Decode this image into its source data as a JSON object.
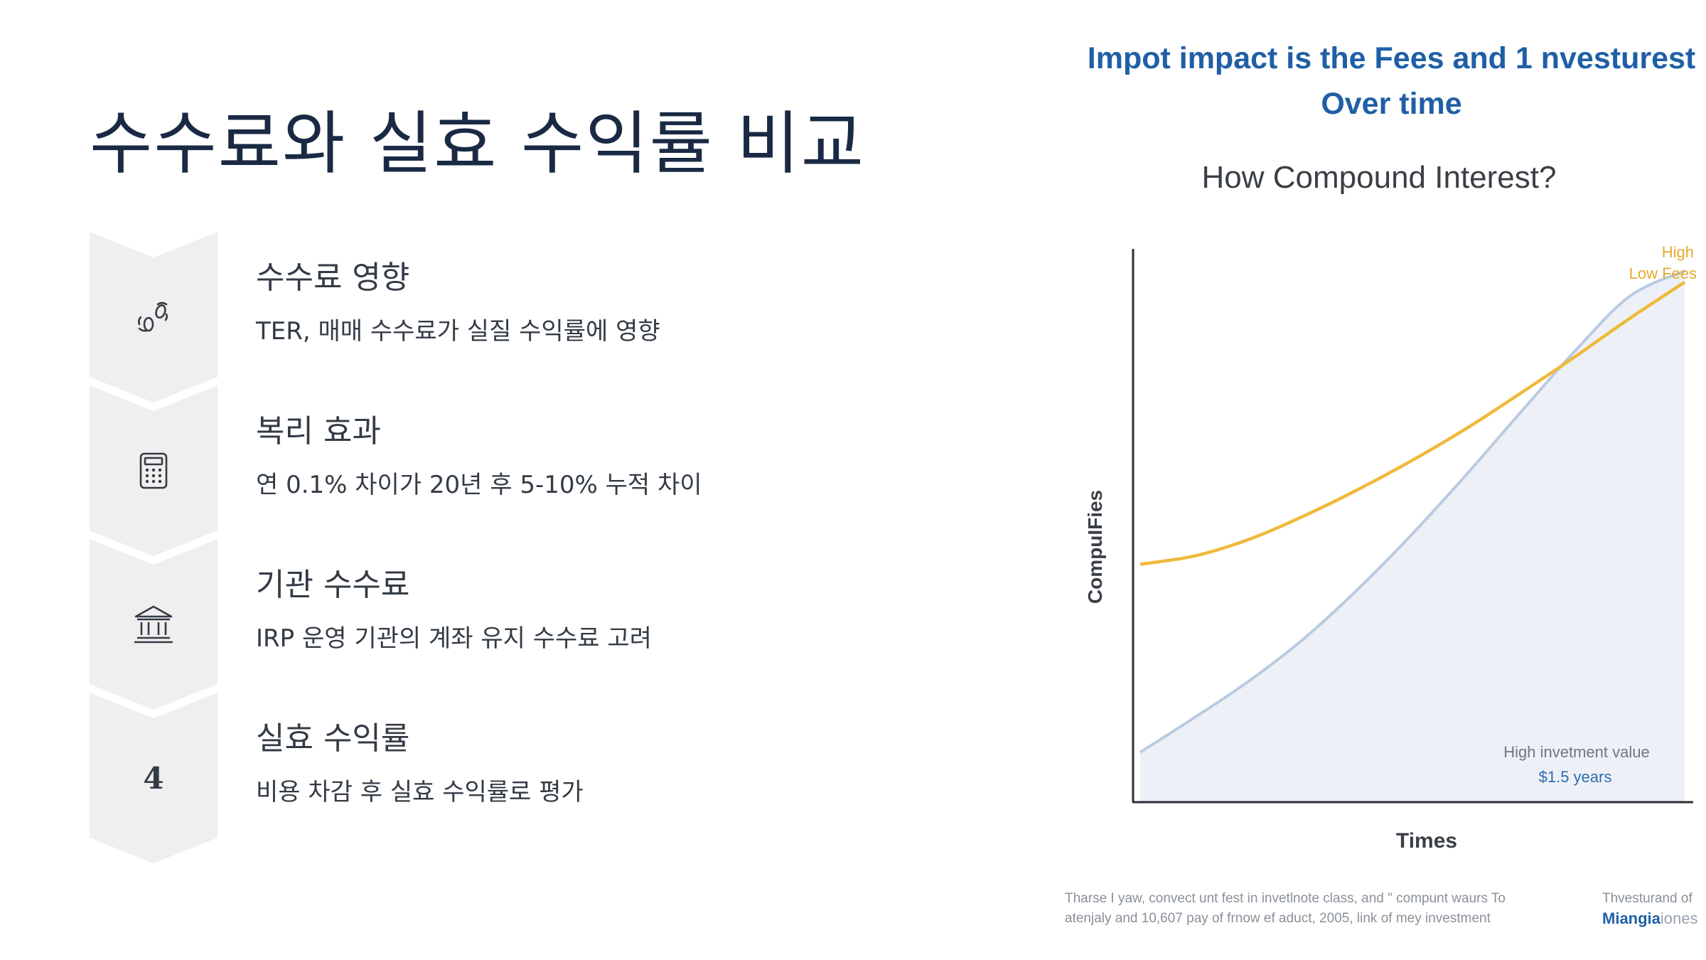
{
  "slide": {
    "title": "수수료와 실효 수익률 비교",
    "title_color": "#1a2a44",
    "text_color": "#333b45",
    "chevron_color": "#f0eeee"
  },
  "steps": [
    {
      "icon": "drops-icon",
      "heading": "수수료 영향",
      "desc": "TER, 매매 수수료가 실질 수익률에 영향"
    },
    {
      "icon": "calculator-icon",
      "heading": "복리 효과",
      "desc": "연 0.1% 차이가 20년 후 5-10% 누적 차이"
    },
    {
      "icon": "bank-icon",
      "heading": "기관 수수료",
      "desc": "IRP 운영 기관의 계좌 유지 수수료 고려"
    },
    {
      "icon": "number-icon",
      "number": "4",
      "heading": "실효 수익률",
      "desc": "비용 차감 후 실효 수익률로 평가"
    }
  ],
  "figure": {
    "banner_line1": "Impot impact is the Fees and 1 nvesturest",
    "banner_line2": "Over time",
    "banner_color": "#1f5fa6",
    "footer_line1": "Tharse I yaw, convect unt fest in invetlnote class, and \" compunt waurs To",
    "footer_line2": "atenjaly and 10,607 pay of frnow ef aduct, 2005, link of mey investment",
    "credit_line1": "Thvesturand of",
    "credit_brand": "Miangia",
    "credit_brand_light": "iones",
    "credit_color": "#1f5fa6"
  },
  "chart_data": {
    "type": "line",
    "title": "How Compound Interest?",
    "xlabel": "Times",
    "ylabel": "CompuIFies",
    "x": [
      0,
      1,
      2,
      3,
      4,
      5,
      6,
      7,
      8,
      9,
      10
    ],
    "xlim": [
      0,
      10
    ],
    "ylim": [
      0,
      100
    ],
    "grid": false,
    "series": [
      {
        "name": "High",
        "color": "#f0b93a",
        "area": false,
        "label_color": "#e8a92a",
        "values": [
          43,
          44.5,
          47.5,
          51.7,
          56.5,
          61.8,
          67.6,
          74,
          80.6,
          87.5,
          94
        ]
      },
      {
        "name": "Low Fees",
        "color": "#b9cbe1",
        "area": true,
        "area_color": "#edf1f7",
        "label_color": "#e8a92a",
        "values": [
          9,
          15.3,
          21.9,
          29.5,
          38.5,
          48.5,
          59.3,
          70.6,
          81.7,
          91.5,
          96
        ]
      }
    ],
    "annotation": {
      "line1": "High invetment value",
      "line2": "$1.5 years",
      "color1": "#6f7780",
      "color2": "#2f6bb0"
    }
  }
}
